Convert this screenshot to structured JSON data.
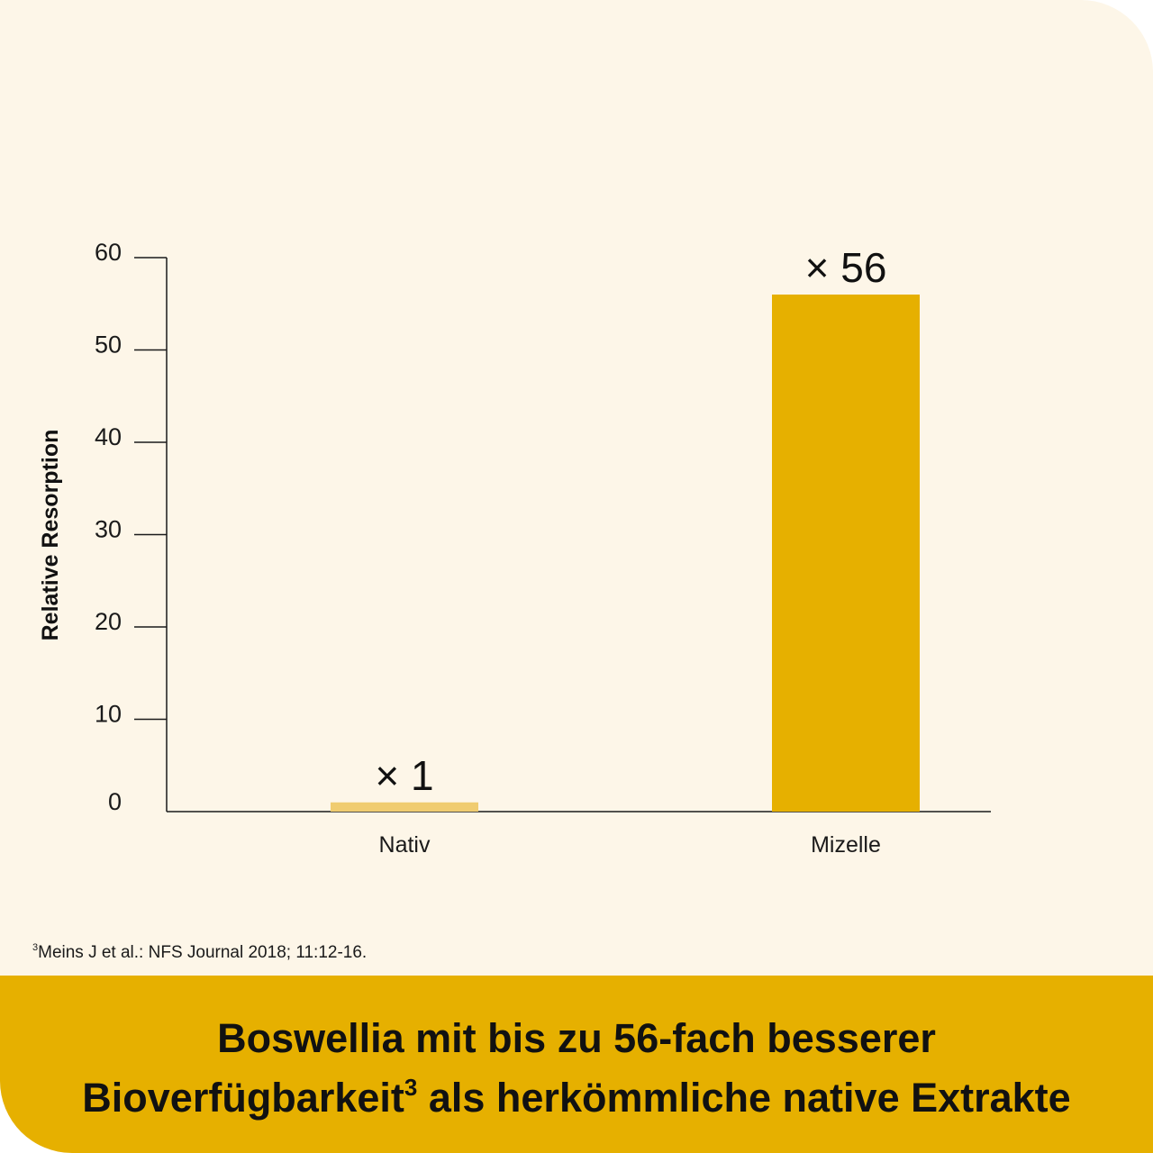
{
  "chart_data": {
    "type": "bar",
    "categories": [
      "Nativ",
      "Mizelle"
    ],
    "values": [
      1,
      56
    ],
    "data_labels": [
      "× 1",
      "× 56"
    ],
    "ylabel": "Relative Resorption",
    "ylim": [
      0,
      60
    ],
    "yticks": [
      0,
      10,
      20,
      30,
      40,
      50,
      60
    ],
    "grid": false,
    "colors": [
      "#f0cc70",
      "#e6b000"
    ]
  },
  "footnote": {
    "marker": "3",
    "text": "Meins J et al.: NFS Journal 2018; 11:12-16."
  },
  "headline": {
    "line1": "Boswellia mit bis zu 56-fach besserer",
    "line2_start": "Bioverfügbarkeit",
    "line2_marker": "3",
    "line2_end": " als herkömmliche native Extrakte"
  },
  "colors": {
    "background": "#fdf6e8",
    "banner": "#e6b000",
    "text": "#111111"
  }
}
